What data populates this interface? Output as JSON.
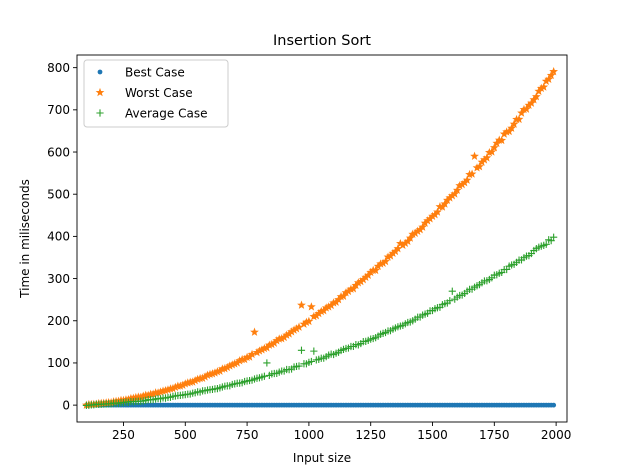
{
  "chart_data": {
    "type": "scatter",
    "title": "Insertion Sort",
    "xlabel": "Input size",
    "ylabel": "Time in miliseconds",
    "xlim": [
      62,
      2044
    ],
    "ylim": [
      -40,
      830
    ],
    "xticks": [
      250,
      500,
      750,
      1000,
      1250,
      1500,
      1750,
      2000
    ],
    "xtick_labels": [
      "250",
      "500",
      "750",
      "1000",
      "1250",
      "1500",
      "1750",
      "2000"
    ],
    "yticks": [
      0,
      100,
      200,
      300,
      400,
      500,
      600,
      700,
      800
    ],
    "ytick_labels": [
      "0",
      "100",
      "200",
      "300",
      "400",
      "500",
      "600",
      "700",
      "800"
    ],
    "grid": false,
    "legend_position": "top-left",
    "x_range": {
      "start": 100,
      "end": 1990,
      "step": 10
    },
    "series": [
      {
        "name": "Best Case",
        "marker": "circle",
        "color": "#1f77b4",
        "model": "constant",
        "value": 0
      },
      {
        "name": "Worst Case",
        "marker": "star",
        "color": "#ff7f0e",
        "model": "quadratic",
        "coef_a": 0.000197,
        "coef_b": 0.005,
        "coef_c": -2,
        "outliers": [
          [
            780,
            173
          ],
          [
            970,
            237
          ],
          [
            1010,
            233
          ],
          [
            1030,
            212
          ],
          [
            1370,
            383
          ],
          [
            1670,
            590
          ]
        ]
      },
      {
        "name": "Average Case",
        "marker": "plus",
        "color": "#2ca02c",
        "model": "quadratic",
        "coef_a": 9.85e-05,
        "coef_b": 0.003,
        "coef_c": -1,
        "outliers": [
          [
            830,
            100
          ],
          [
            970,
            130
          ],
          [
            1020,
            128
          ],
          [
            1580,
            270
          ],
          [
            1970,
            392
          ],
          [
            1990,
            398
          ]
        ]
      }
    ]
  }
}
